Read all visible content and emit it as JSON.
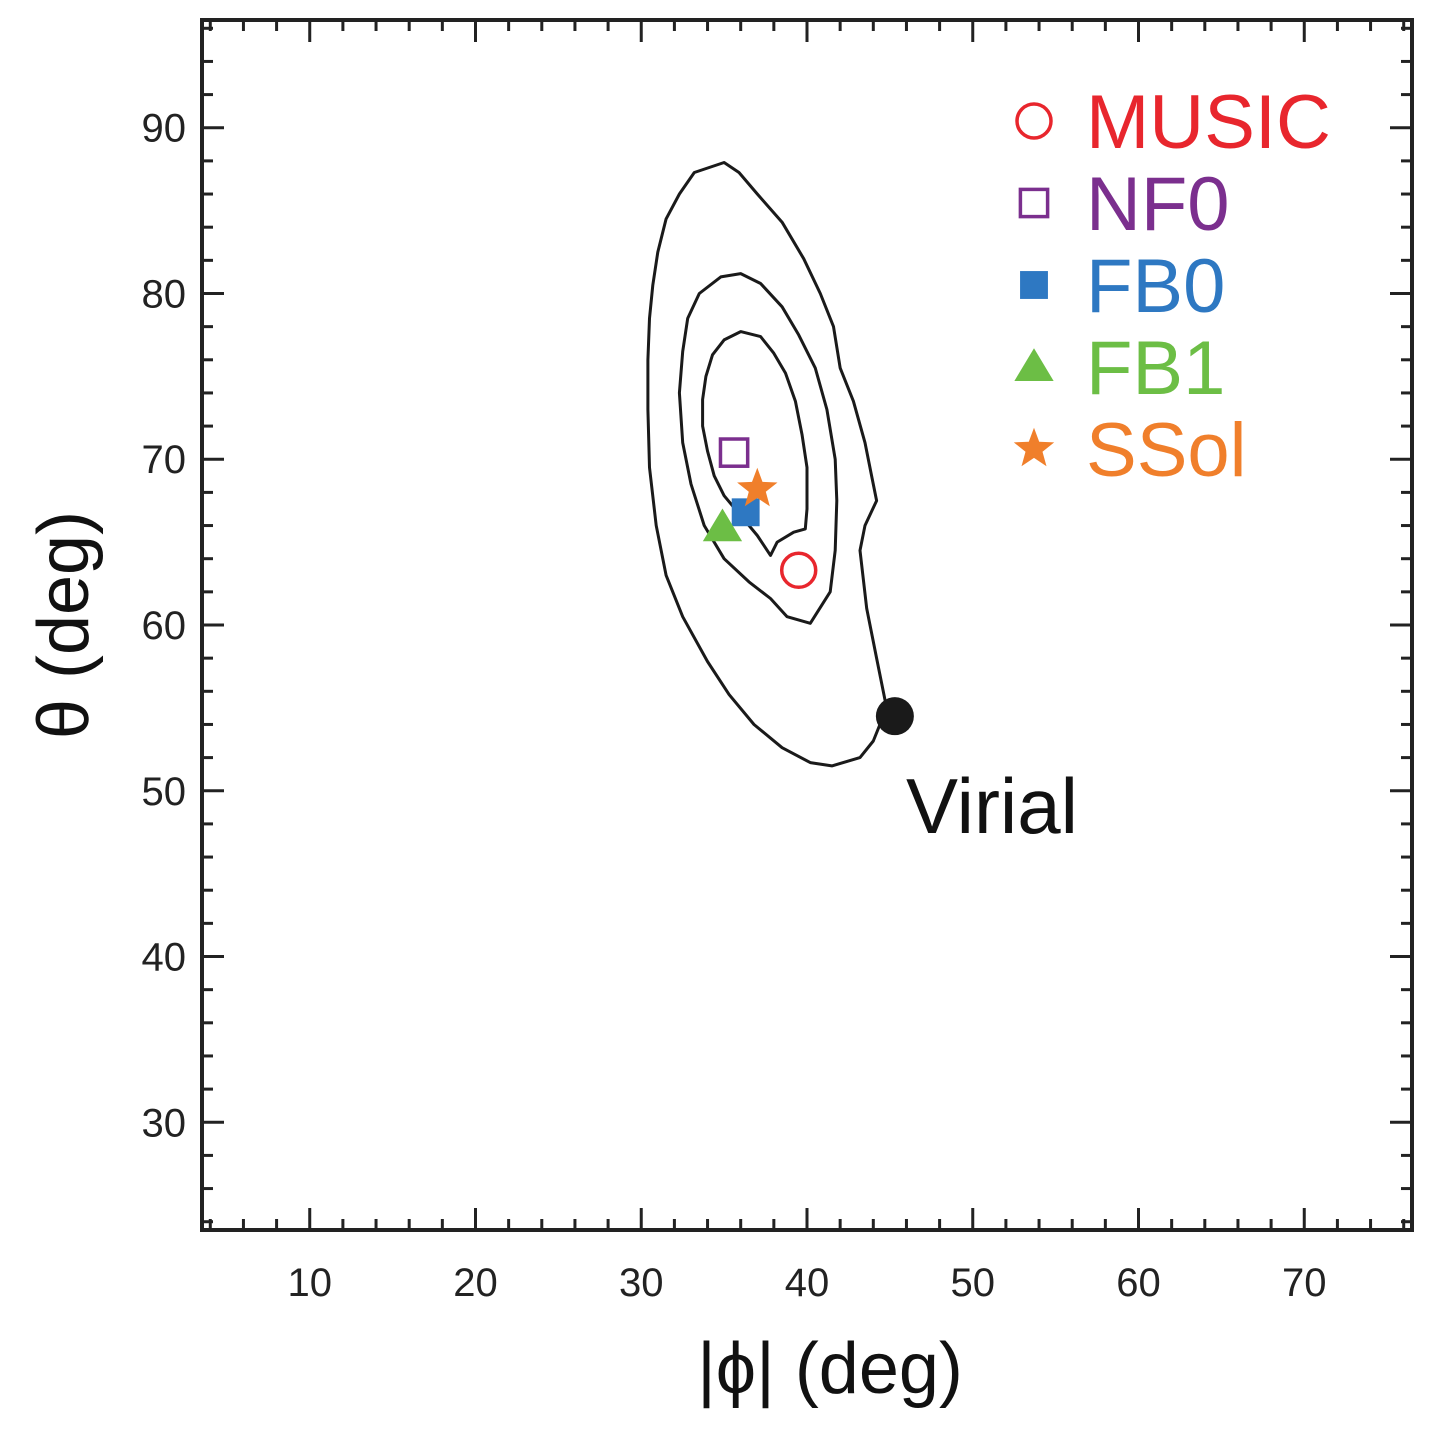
{
  "chart_data": {
    "type": "scatter",
    "xlabel": "|ϕ| (deg)",
    "ylabel": "θ (deg)",
    "xlim": [
      3.5,
      76.5
    ],
    "ylim": [
      23.5,
      96.5
    ],
    "x_ticks": [
      10,
      20,
      30,
      40,
      50,
      60,
      70
    ],
    "y_ticks": [
      30,
      40,
      50,
      60,
      70,
      80,
      90
    ],
    "x_tick_labels": [
      "10",
      "20",
      "30",
      "40",
      "50",
      "60",
      "70"
    ],
    "y_tick_labels": [
      "30",
      "40",
      "50",
      "60",
      "70",
      "80",
      "90"
    ],
    "legend_position": "top-right",
    "series": [
      {
        "name": "MUSIC",
        "marker": "open-circle",
        "color": "#e8262d",
        "x": 39.5,
        "y": 63.3
      },
      {
        "name": "NF0",
        "marker": "open-square",
        "color": "#7b2f8e",
        "x": 35.6,
        "y": 70.4
      },
      {
        "name": "FB0",
        "marker": "filled-square",
        "color": "#2e78c2",
        "x": 36.3,
        "y": 66.8
      },
      {
        "name": "FB1",
        "marker": "filled-triangle",
        "color": "#6cbe45",
        "x": 34.9,
        "y": 65.9
      },
      {
        "name": "SSol",
        "marker": "star",
        "color": "#f07f2b",
        "x": 37.0,
        "y": 68.2
      }
    ],
    "annotation": {
      "label": "Virial",
      "x": 45.0,
      "y": 54.5,
      "color": "#1a1a1a"
    },
    "contours": [
      {
        "level": "inner",
        "points": [
          [
            33.7,
            73.6
          ],
          [
            33.9,
            75.0
          ],
          [
            34.3,
            76.3
          ],
          [
            35.0,
            77.2
          ],
          [
            36.0,
            77.7
          ],
          [
            37.2,
            77.4
          ],
          [
            38.0,
            76.4
          ],
          [
            38.7,
            75.2
          ],
          [
            39.3,
            73.5
          ],
          [
            39.7,
            71.5
          ],
          [
            40.0,
            69.5
          ],
          [
            40.0,
            67.0
          ],
          [
            39.9,
            65.8
          ],
          [
            39.2,
            65.6
          ],
          [
            38.2,
            65.0
          ],
          [
            37.8,
            64.2
          ],
          [
            37.0,
            65.4
          ],
          [
            36.0,
            66.6
          ],
          [
            35.0,
            67.8
          ],
          [
            34.4,
            69.0
          ],
          [
            34.0,
            70.5
          ],
          [
            33.7,
            72.0
          ],
          [
            33.7,
            73.6
          ]
        ]
      },
      {
        "level": "middle",
        "points": [
          [
            32.3,
            74.0
          ],
          [
            32.5,
            76.5
          ],
          [
            32.8,
            78.5
          ],
          [
            33.5,
            80.0
          ],
          [
            34.8,
            81.0
          ],
          [
            36.0,
            81.2
          ],
          [
            37.2,
            80.6
          ],
          [
            38.5,
            79.2
          ],
          [
            39.5,
            77.5
          ],
          [
            40.5,
            75.5
          ],
          [
            41.2,
            73.0
          ],
          [
            41.7,
            70.0
          ],
          [
            41.8,
            67.5
          ],
          [
            41.7,
            64.5
          ],
          [
            41.4,
            62.0
          ],
          [
            40.2,
            60.1
          ],
          [
            38.8,
            60.5
          ],
          [
            37.8,
            61.6
          ],
          [
            36.5,
            62.6
          ],
          [
            35.0,
            64.0
          ],
          [
            33.8,
            66.0
          ],
          [
            33.0,
            68.5
          ],
          [
            32.5,
            71.0
          ],
          [
            32.3,
            74.0
          ]
        ]
      },
      {
        "level": "outer",
        "points": [
          [
            30.4,
            76.0
          ],
          [
            30.5,
            78.5
          ],
          [
            30.7,
            80.5
          ],
          [
            31.0,
            82.5
          ],
          [
            31.5,
            84.5
          ],
          [
            32.3,
            86.0
          ],
          [
            33.2,
            87.3
          ],
          [
            35.0,
            87.9
          ],
          [
            35.9,
            87.3
          ],
          [
            37.0,
            86.0
          ],
          [
            38.5,
            84.3
          ],
          [
            39.8,
            82.1
          ],
          [
            40.8,
            80.0
          ],
          [
            41.6,
            78.0
          ],
          [
            42.0,
            75.5
          ],
          [
            42.8,
            73.5
          ],
          [
            43.5,
            71.0
          ],
          [
            43.9,
            69.0
          ],
          [
            44.2,
            67.5
          ],
          [
            43.5,
            66.0
          ],
          [
            43.2,
            64.5
          ],
          [
            43.6,
            61.0
          ],
          [
            44.2,
            58.0
          ],
          [
            44.8,
            55.0
          ],
          [
            44.0,
            53.0
          ],
          [
            43.2,
            52.0
          ],
          [
            41.5,
            51.5
          ],
          [
            40.2,
            51.7
          ],
          [
            38.5,
            52.6
          ],
          [
            36.8,
            54.0
          ],
          [
            35.3,
            55.8
          ],
          [
            34.0,
            57.8
          ],
          [
            32.5,
            60.5
          ],
          [
            31.5,
            63.0
          ],
          [
            30.9,
            66.0
          ],
          [
            30.5,
            69.5
          ],
          [
            30.4,
            73.0
          ],
          [
            30.4,
            76.0
          ]
        ]
      }
    ]
  }
}
